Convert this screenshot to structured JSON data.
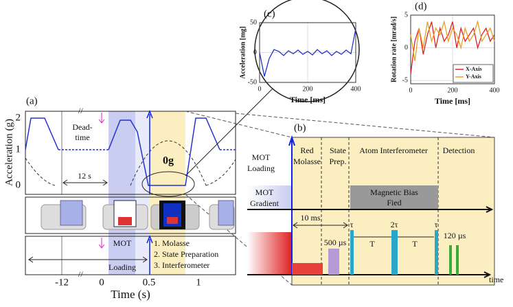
{
  "figure": {
    "a": {
      "label": "(a)",
      "y_axis_label": "Acceleration (g)",
      "y_ticks": [
        "0",
        "1",
        "2"
      ],
      "x_ticks": [
        "-12",
        "0",
        "0.5",
        "1"
      ],
      "x_axis_label": "Time (s)",
      "dead_time": [
        "Dead-",
        "time"
      ],
      "interval": "12 s",
      "zero_g": "0g",
      "mot_loading": [
        "MOT",
        "Loading"
      ],
      "steps": [
        "1. Molasse",
        "2. State Preparation",
        "3. Interferometer"
      ]
    },
    "b": {
      "label": "(b)",
      "rows": [
        [
          "MOT",
          "Loading"
        ],
        [
          "MOT",
          "Gradient"
        ]
      ],
      "phases": [
        [
          "Red",
          "Molasse"
        ],
        [
          "State",
          "Prep."
        ],
        [
          "Atom Interferometer"
        ],
        [
          "Detection"
        ]
      ],
      "bias": [
        "Magnetic Bias",
        "Fied"
      ],
      "durations": {
        "molasse": "10 ms",
        "prep": "500 µs",
        "detection": "120 µs"
      },
      "pulses": [
        "τ",
        "2τ",
        "τ"
      ],
      "gaps": [
        "T",
        "T"
      ],
      "time": "time"
    }
  },
  "chart_data": [
    {
      "type": "line",
      "title": "(c)",
      "xlabel": "Time [ms]",
      "ylabel": "Acceleration [mg]",
      "x": [
        0,
        20,
        40,
        60,
        80,
        100,
        120,
        140,
        160,
        180,
        200,
        220,
        240,
        260,
        280,
        300,
        320,
        340,
        360,
        380,
        400
      ],
      "series": [
        {
          "color": "#2233cc",
          "values": [
            0,
            -40,
            -10,
            5,
            2,
            -5,
            3,
            -2,
            4,
            -3,
            2,
            -4,
            5,
            -2,
            3,
            -5,
            2,
            -3,
            4,
            -2,
            40
          ]
        }
      ],
      "xlim": [
        0,
        400
      ],
      "xticks": [
        0,
        200,
        400
      ],
      "ylim": [
        -50,
        50
      ],
      "yticks": [
        -50,
        0,
        50
      ],
      "grid": true
    },
    {
      "type": "line",
      "title": "(d)",
      "xlabel": "Time [ms]",
      "ylabel": "Rotation rate [mrad/s]",
      "x": [
        0,
        20,
        40,
        60,
        80,
        100,
        120,
        140,
        160,
        180,
        200,
        220,
        240,
        260,
        280,
        300,
        320,
        340,
        360,
        380,
        400
      ],
      "series": [
        {
          "name": "X-Axis",
          "color": "#e02020",
          "values": [
            -4,
            1,
            3,
            -1,
            2,
            4,
            0,
            3,
            1,
            2,
            4,
            0,
            3,
            1,
            2,
            3,
            0,
            2,
            3,
            1,
            2
          ]
        },
        {
          "name": "Y-Axis",
          "color": "#e8a020",
          "values": [
            2,
            -2,
            3,
            0,
            4,
            1,
            3,
            2,
            4,
            1,
            3,
            2,
            0,
            3,
            1,
            2,
            4,
            1,
            2,
            3,
            1
          ]
        }
      ],
      "xlim": [
        0,
        400
      ],
      "xticks": [
        0,
        200,
        400
      ],
      "ylim": [
        -5.5,
        5
      ],
      "yticks": [
        -5,
        0,
        5
      ],
      "grid": true,
      "legend": "lower right"
    }
  ]
}
